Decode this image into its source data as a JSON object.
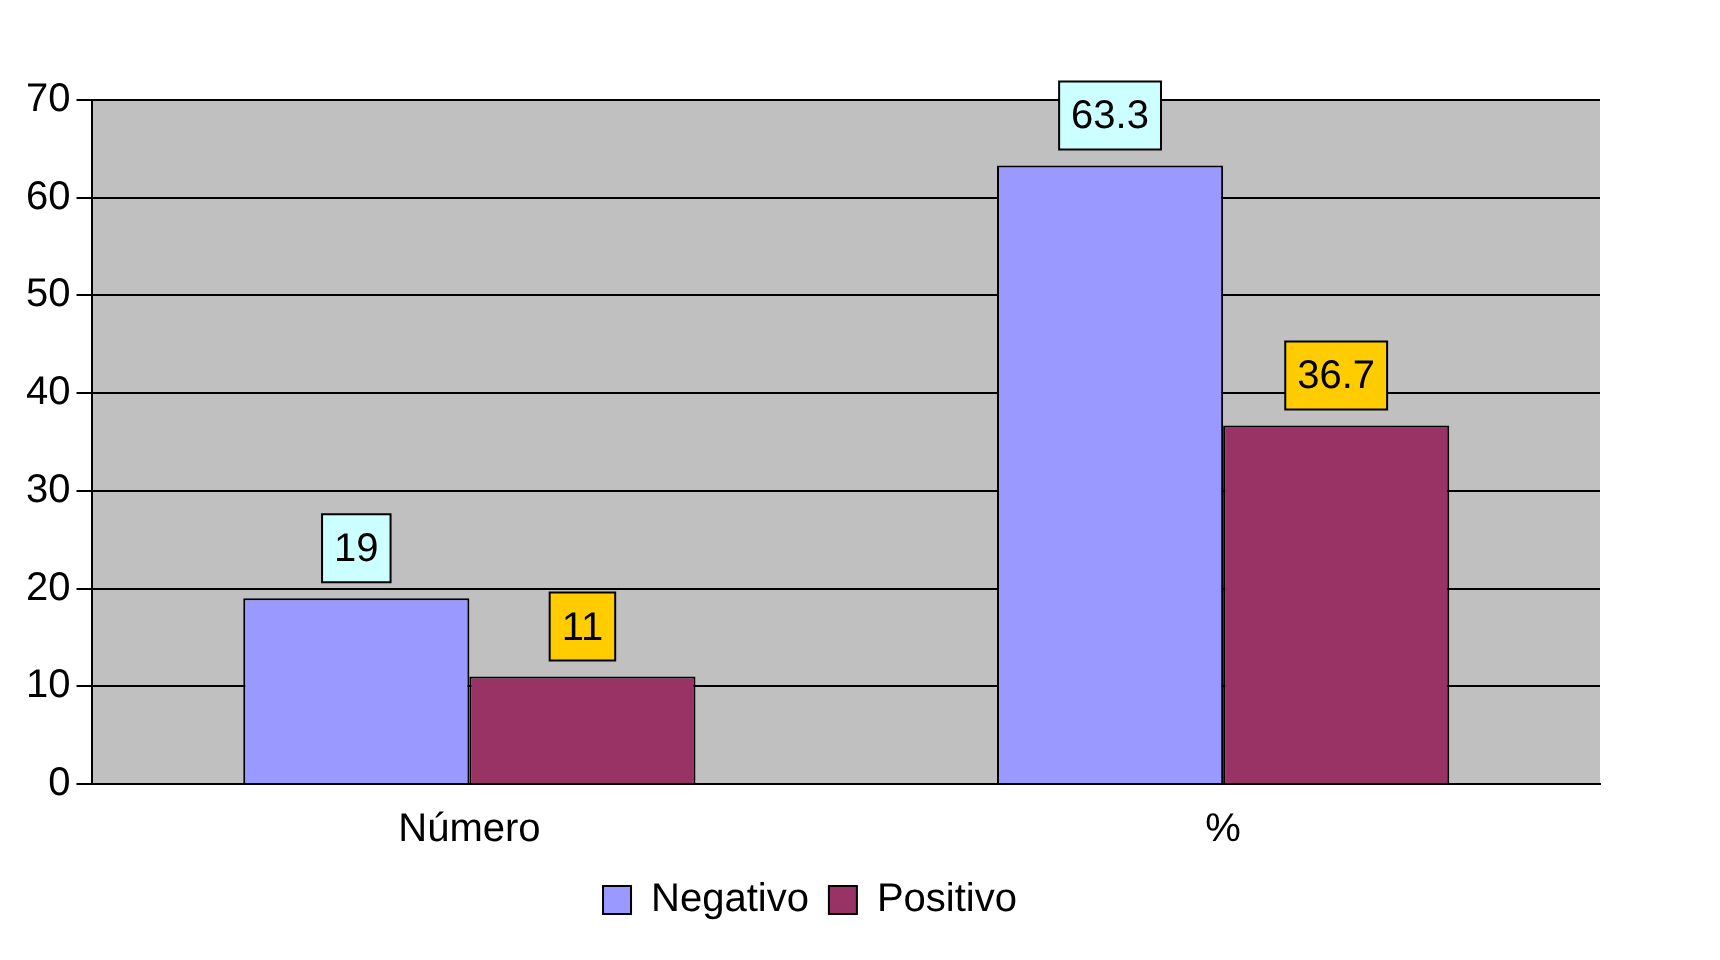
{
  "chart_data": {
    "type": "bar",
    "categories": [
      "Número",
      "%"
    ],
    "series": [
      {
        "name": "Negativo",
        "color": "#9999ff",
        "values": [
          19,
          63.3
        ]
      },
      {
        "name": "Positivo",
        "color": "#993366",
        "values": [
          11,
          36.7
        ]
      }
    ],
    "ylim": [
      0,
      70
    ],
    "yticks": [
      0,
      10,
      20,
      30,
      40,
      50,
      60,
      70
    ],
    "grid": "y",
    "legend": "bottom",
    "data_labels": true
  }
}
